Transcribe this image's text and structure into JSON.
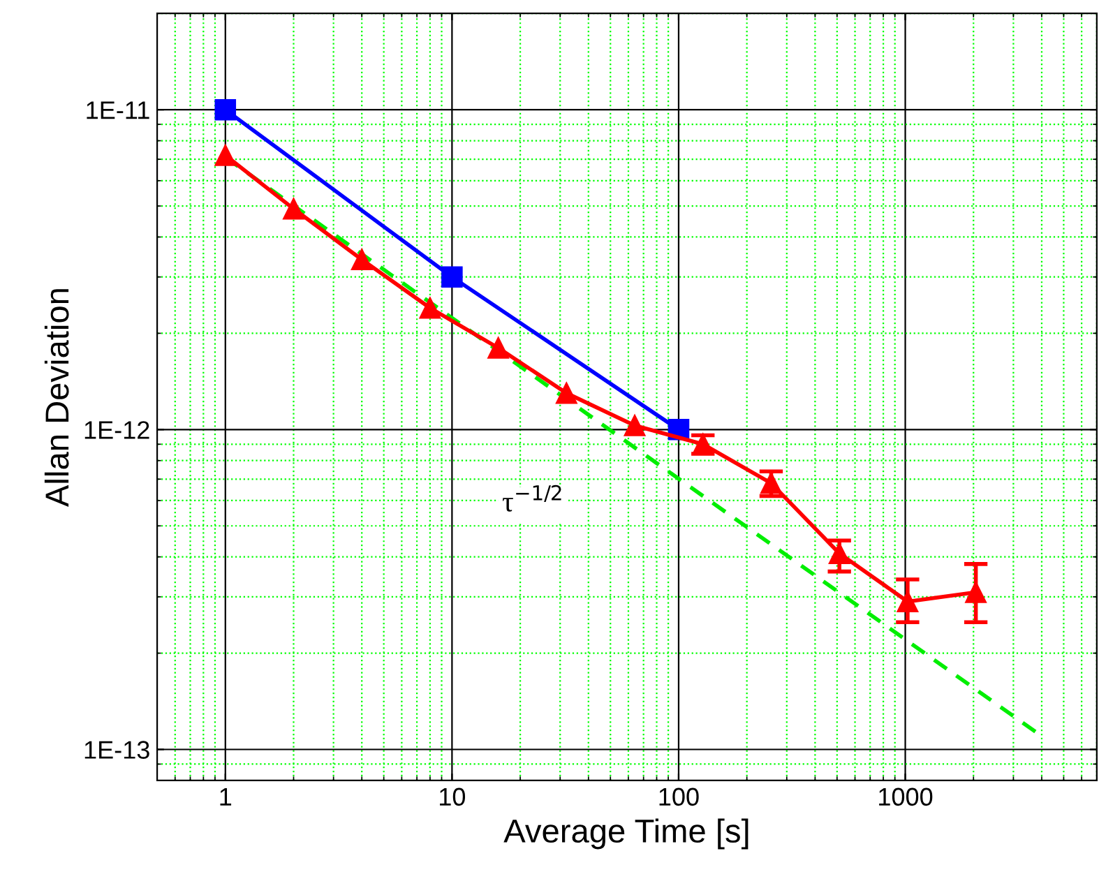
{
  "chart_data": {
    "type": "line",
    "xlabel": "Average Time [s]",
    "ylabel": "Allan Deviation",
    "log": "xy",
    "xlim": [
      0.5,
      7000
    ],
    "ylim": [
      8e-14,
      2e-11
    ],
    "xticks": [
      {
        "value": 0.6,
        "label": null
      },
      {
        "value": 0.7,
        "label": null
      },
      {
        "value": 0.8,
        "label": null
      },
      {
        "value": 0.9,
        "label": null
      },
      1,
      {
        "value": 2,
        "label": null
      },
      {
        "value": 3,
        "label": null
      },
      {
        "value": 4,
        "label": null
      },
      {
        "value": 5,
        "label": null
      },
      {
        "value": 6,
        "label": null
      },
      {
        "value": 7,
        "label": null
      },
      {
        "value": 8,
        "label": null
      },
      {
        "value": 9,
        "label": null
      },
      10,
      {
        "value": 20,
        "label": null
      },
      {
        "value": 30,
        "label": null
      },
      {
        "value": 40,
        "label": null
      },
      {
        "value": 50,
        "label": null
      },
      {
        "value": 60,
        "label": null
      },
      {
        "value": 70,
        "label": null
      },
      {
        "value": 80,
        "label": null
      },
      {
        "value": 90,
        "label": null
      },
      100,
      {
        "value": 200,
        "label": null
      },
      {
        "value": 300,
        "label": null
      },
      {
        "value": 400,
        "label": null
      },
      {
        "value": 500,
        "label": null
      },
      {
        "value": 600,
        "label": null
      },
      {
        "value": 700,
        "label": null
      },
      {
        "value": 800,
        "label": null
      },
      {
        "value": 900,
        "label": null
      },
      1000,
      {
        "value": 2000,
        "label": null
      },
      {
        "value": 3000,
        "label": null
      },
      {
        "value": 4000,
        "label": null
      },
      {
        "value": 5000,
        "label": null
      },
      {
        "value": 6000,
        "label": null
      },
      {
        "value": 7000,
        "label": null
      }
    ],
    "yticks": [
      {
        "value": 9e-14,
        "label": null
      },
      {
        "value": 1e-13,
        "label": "1E-13"
      },
      {
        "value": 2e-13,
        "label": null
      },
      {
        "value": 3e-13,
        "label": null
      },
      {
        "value": 4e-13,
        "label": null
      },
      {
        "value": 5e-13,
        "label": null
      },
      {
        "value": 6e-13,
        "label": null
      },
      {
        "value": 7e-13,
        "label": null
      },
      {
        "value": 8e-13,
        "label": null
      },
      {
        "value": 9e-13,
        "label": null
      },
      {
        "value": 1e-12,
        "label": "1E-12"
      },
      {
        "value": 2e-12,
        "label": null
      },
      {
        "value": 3e-12,
        "label": null
      },
      {
        "value": 4e-12,
        "label": null
      },
      {
        "value": 5e-12,
        "label": null
      },
      {
        "value": 6e-12,
        "label": null
      },
      {
        "value": 7e-12,
        "label": null
      },
      {
        "value": 8e-12,
        "label": null
      },
      {
        "value": 9e-12,
        "label": null
      },
      {
        "value": 1e-11,
        "label": "1E-11"
      },
      {
        "value": 2e-11,
        "label": null
      }
    ],
    "grid": true,
    "legend": false,
    "series": [
      {
        "color": "#0000ff",
        "marker": "square",
        "line_style": "solid",
        "x": [
          1,
          10,
          100
        ],
        "values": [
          1e-11,
          3e-12,
          1e-12
        ]
      },
      {
        "color": "#00ee00",
        "marker": "none",
        "line_style": "dashed",
        "x": [
          1,
          4000
        ],
        "values": [
          7.1e-12,
          1.1e-13
        ]
      },
      {
        "color": "#ff0000",
        "marker": "triangle",
        "line_style": "solid",
        "x": [
          1,
          2,
          4,
          8,
          16,
          32,
          64,
          128,
          256,
          512,
          1024,
          2048
        ],
        "values": [
          7.2e-12,
          4.9e-12,
          3.4e-12,
          2.4e-12,
          1.8e-12,
          1.3e-12,
          1.03e-12,
          9e-13,
          6.8e-13,
          4.1e-13,
          2.9e-13,
          3.1e-13
        ],
        "errors": [
          null,
          null,
          null,
          null,
          null,
          null,
          null,
          [
            8.4e-13,
            9.6e-13
          ],
          [
            6.2e-13,
            7.4e-13
          ],
          [
            3.6e-13,
            4.5e-13
          ],
          [
            2.5e-13,
            3.4e-13
          ],
          [
            2.5e-13,
            3.8e-13
          ]
        ]
      }
    ],
    "annotations": [
      "τ$^{−1/2}$"
    ]
  }
}
